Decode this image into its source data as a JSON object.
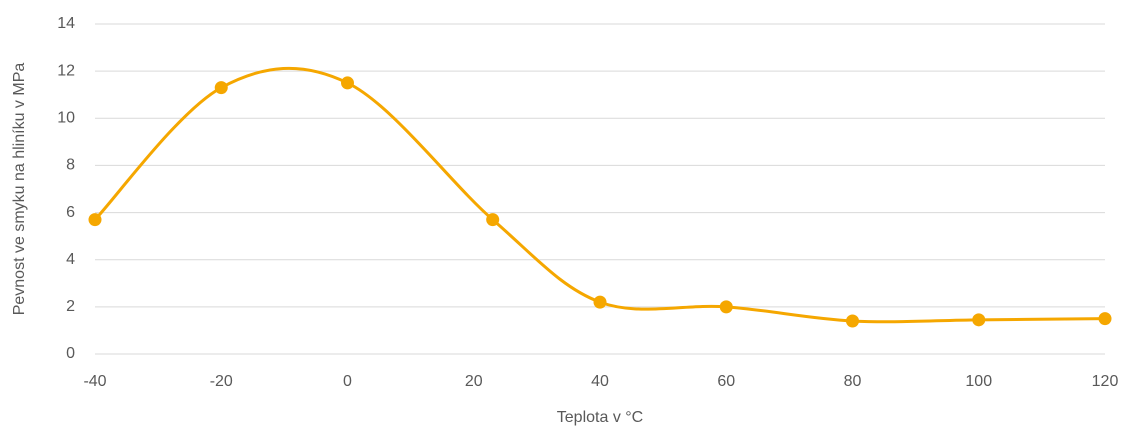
{
  "chart_data": {
    "type": "scatter",
    "x_label": "Teplota v °C",
    "y_label": "Pevnost ve smyku na hliníku v MPa",
    "series": [
      {
        "color": "#f5a700",
        "x": [
          -40,
          -20,
          0,
          23,
          40,
          60,
          80,
          100,
          120
        ],
        "values": [
          5.7,
          11.3,
          11.5,
          5.7,
          2.2,
          2.0,
          1.4,
          1.45,
          1.5
        ]
      }
    ],
    "xlim": [
      -40,
      120
    ],
    "xticks": [
      -40,
      -20,
      0,
      20,
      40,
      60,
      80,
      100,
      120
    ],
    "ylim": [
      0,
      14
    ],
    "yticks": [
      0,
      2,
      4,
      6,
      8,
      10,
      12,
      14
    ],
    "grid": true,
    "smooth": true
  }
}
